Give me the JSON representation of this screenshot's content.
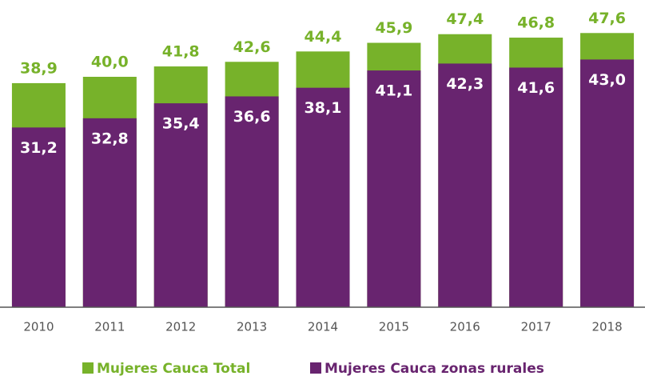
{
  "chart_data": {
    "type": "bar",
    "overlap": true,
    "categories": [
      "2010",
      "2011",
      "2012",
      "2013",
      "2014",
      "2015",
      "2016",
      "2017",
      "2018"
    ],
    "series": [
      {
        "name": "Mujeres Cauca Total",
        "color": "#77b22a",
        "values": [
          38.9,
          40.0,
          41.8,
          42.6,
          44.4,
          45.9,
          47.4,
          46.8,
          47.6
        ],
        "value_labels": [
          "38,9",
          "40,0",
          "41,8",
          "42,6",
          "44,4",
          "45,9",
          "47,4",
          "46,8",
          "47,6"
        ]
      },
      {
        "name": "Mujeres Cauca zonas rurales",
        "color": "#68246f",
        "values": [
          31.2,
          32.8,
          35.4,
          36.6,
          38.1,
          41.1,
          42.3,
          41.6,
          43.0
        ],
        "value_labels": [
          "31,2",
          "32,8",
          "35,4",
          "36,6",
          "38,1",
          "41,1",
          "42,3",
          "41,6",
          "43,0"
        ]
      }
    ],
    "ylim": [
      0,
      50
    ],
    "legend": "bottom"
  }
}
